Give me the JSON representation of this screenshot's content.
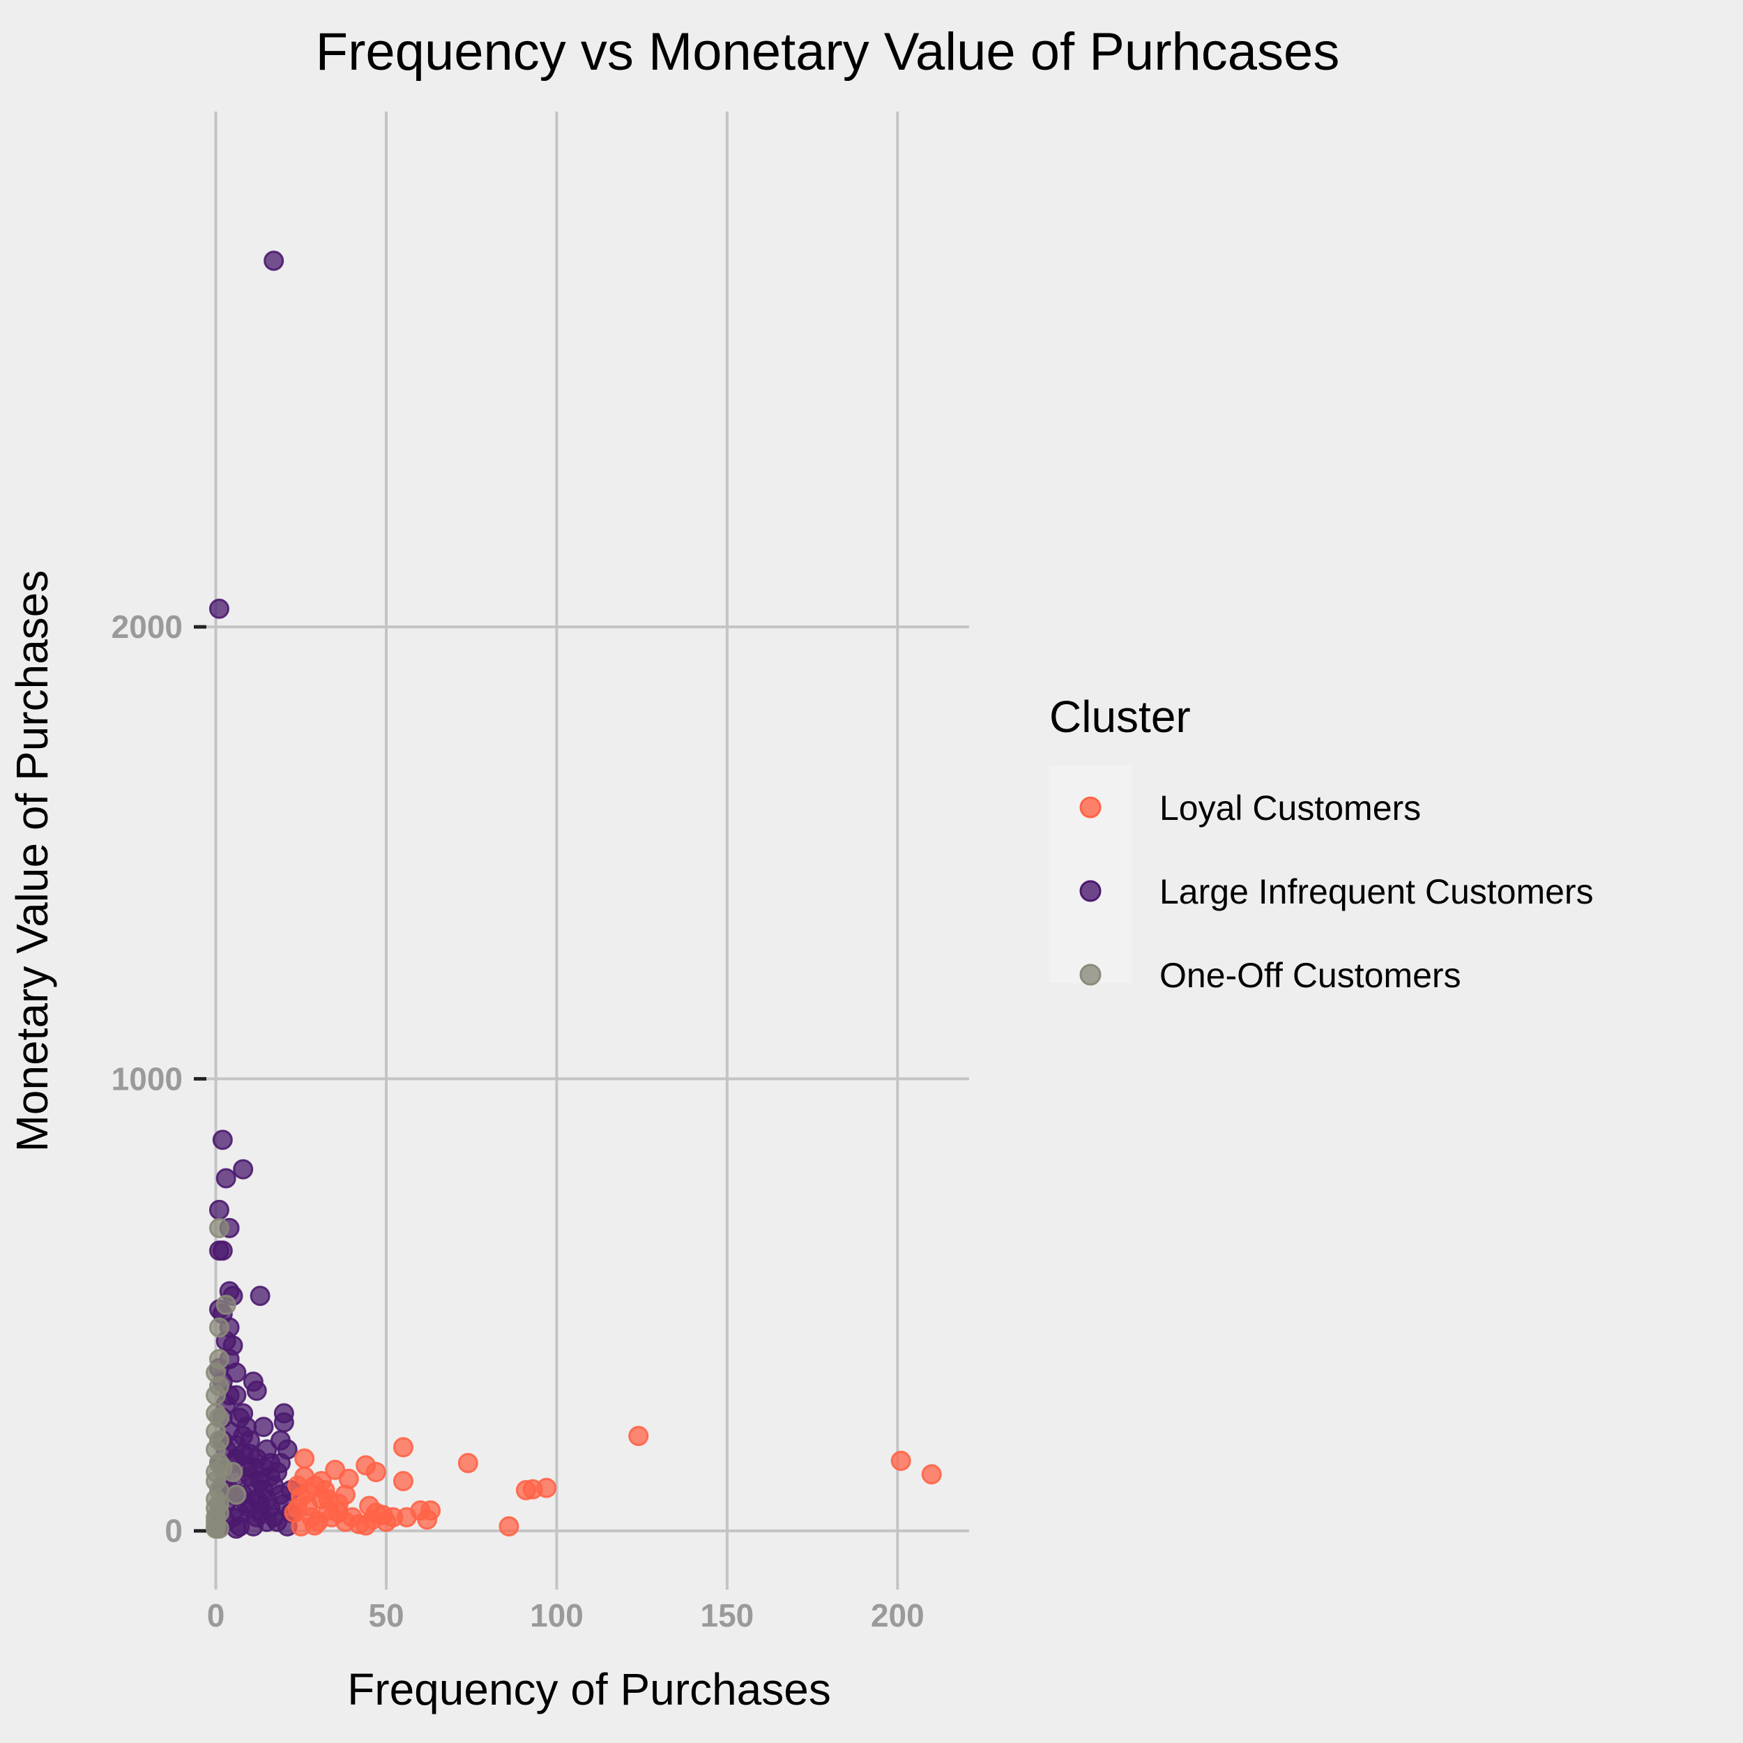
{
  "chart_data": {
    "type": "scatter",
    "title": "Frequency vs Monetary Value of Purhcases",
    "xlabel": "Frequency of Purchases",
    "ylabel": "Monetary Value of Purchases",
    "xlim": [
      -4,
      221
    ],
    "ylim": [
      -130,
      3140
    ],
    "xticks": [
      0,
      50,
      100,
      150,
      200
    ],
    "yticks": [
      0,
      1000,
      2000
    ],
    "grid": true,
    "legend": {
      "title": "Cluster",
      "placement": "right"
    },
    "series": [
      {
        "name": "Loyal Customers",
        "color": "#ff6347",
        "points": [
          [
            201,
            155
          ],
          [
            210,
            125
          ],
          [
            124,
            210
          ],
          [
            97,
            95
          ],
          [
            91,
            90
          ],
          [
            93,
            92
          ],
          [
            74,
            150
          ],
          [
            86,
            10
          ],
          [
            63,
            45
          ],
          [
            62,
            25
          ],
          [
            60,
            45
          ],
          [
            56,
            30
          ],
          [
            55,
            185
          ],
          [
            55,
            110
          ],
          [
            52,
            30
          ],
          [
            49,
            35
          ],
          [
            47,
            40
          ],
          [
            45,
            55
          ],
          [
            44,
            12
          ],
          [
            44,
            145
          ],
          [
            47,
            130
          ],
          [
            39,
            115
          ],
          [
            38,
            80
          ],
          [
            36,
            60
          ],
          [
            35,
            135
          ],
          [
            33,
            45
          ],
          [
            31,
            70
          ],
          [
            31,
            110
          ],
          [
            29,
            100
          ],
          [
            28,
            30
          ],
          [
            27,
            55
          ],
          [
            26,
            120
          ],
          [
            26,
            160
          ],
          [
            25,
            75
          ],
          [
            24,
            100
          ],
          [
            24,
            50
          ],
          [
            23,
            40
          ],
          [
            30,
            20
          ],
          [
            34,
            30
          ],
          [
            38,
            20
          ],
          [
            42,
            15
          ],
          [
            27,
            85
          ],
          [
            32,
            90
          ],
          [
            36,
            40
          ],
          [
            25,
            10
          ],
          [
            29,
            12
          ],
          [
            33,
            70
          ],
          [
            40,
            30
          ],
          [
            46,
            25
          ],
          [
            50,
            20
          ]
        ]
      },
      {
        "name": "Large Infrequent Customers",
        "color": "#4b1a6e",
        "points": [
          [
            17,
            2810
          ],
          [
            1,
            2040
          ],
          [
            2,
            865
          ],
          [
            8,
            800
          ],
          [
            3,
            780
          ],
          [
            1,
            710
          ],
          [
            4,
            670
          ],
          [
            1,
            620
          ],
          [
            2,
            620
          ],
          [
            4,
            530
          ],
          [
            5,
            520
          ],
          [
            13,
            520
          ],
          [
            1,
            490
          ],
          [
            2,
            480
          ],
          [
            4,
            450
          ],
          [
            3,
            420
          ],
          [
            5,
            410
          ],
          [
            4,
            380
          ],
          [
            1,
            360
          ],
          [
            2,
            330
          ],
          [
            6,
            350
          ],
          [
            11,
            330
          ],
          [
            12,
            310
          ],
          [
            20,
            260
          ],
          [
            20,
            240
          ],
          [
            8,
            260
          ],
          [
            19,
            200
          ],
          [
            21,
            180
          ],
          [
            14,
            230
          ],
          [
            10,
            200
          ],
          [
            6,
            300
          ],
          [
            3,
            280
          ],
          [
            7,
            250
          ],
          [
            9,
            230
          ],
          [
            15,
            180
          ],
          [
            12,
            160
          ],
          [
            16,
            150
          ],
          [
            18,
            130
          ],
          [
            10,
            120
          ],
          [
            5,
            150
          ],
          [
            3,
            180
          ],
          [
            2,
            200
          ],
          [
            4,
            220
          ],
          [
            6,
            190
          ],
          [
            8,
            170
          ],
          [
            11,
            140
          ],
          [
            13,
            110
          ],
          [
            14,
            90
          ],
          [
            17,
            100
          ],
          [
            19,
            80
          ],
          [
            20,
            60
          ],
          [
            22,
            40
          ],
          [
            21,
            10
          ],
          [
            18,
            20
          ],
          [
            16,
            50
          ],
          [
            12,
            70
          ],
          [
            9,
            60
          ],
          [
            7,
            40
          ],
          [
            5,
            30
          ],
          [
            3,
            20
          ],
          [
            1,
            10
          ],
          [
            2,
            100
          ],
          [
            4,
            90
          ],
          [
            6,
            120
          ],
          [
            8,
            80
          ],
          [
            10,
            50
          ],
          [
            12,
            30
          ],
          [
            15,
            20
          ],
          [
            7,
            10
          ],
          [
            9,
            140
          ],
          [
            11,
            100
          ],
          [
            13,
            60
          ],
          [
            3,
            60
          ],
          [
            5,
            80
          ],
          [
            1,
            150
          ],
          [
            2,
            250
          ],
          [
            4,
            300
          ],
          [
            6,
            160
          ],
          [
            8,
            210
          ],
          [
            10,
            170
          ],
          [
            14,
            140
          ],
          [
            16,
            120
          ],
          [
            19,
            150
          ],
          [
            22,
            90
          ],
          [
            17,
            30
          ],
          [
            11,
            10
          ],
          [
            6,
            5
          ],
          [
            13,
            40
          ],
          [
            15,
            70
          ]
        ]
      },
      {
        "name": "One-Off Customers",
        "color": "#8a8a7a",
        "points": [
          [
            1,
            670
          ],
          [
            3,
            500
          ],
          [
            1,
            450
          ],
          [
            1,
            380
          ],
          [
            0,
            300
          ],
          [
            1,
            250
          ],
          [
            0,
            220
          ],
          [
            0,
            180
          ],
          [
            1,
            150
          ],
          [
            0,
            130
          ],
          [
            0,
            110
          ],
          [
            1,
            90
          ],
          [
            0,
            70
          ],
          [
            0,
            50
          ],
          [
            1,
            40
          ],
          [
            0,
            30
          ],
          [
            0,
            20
          ],
          [
            0,
            10
          ],
          [
            0,
            5
          ],
          [
            1,
            5
          ],
          [
            5,
            130
          ],
          [
            6,
            80
          ],
          [
            1,
            200
          ],
          [
            0,
            350
          ],
          [
            2,
            140
          ],
          [
            1,
            60
          ],
          [
            0,
            260
          ],
          [
            1,
            320
          ]
        ]
      }
    ]
  }
}
